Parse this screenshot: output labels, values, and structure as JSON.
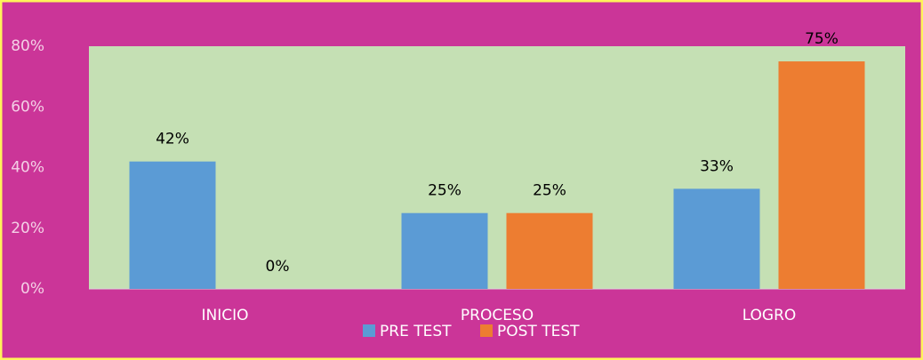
{
  "chart_data": {
    "type": "bar",
    "categories": [
      "INICIO",
      "PROCESO",
      "LOGRO"
    ],
    "series": [
      {
        "name": "PRE TEST",
        "color": "#5b9bd5",
        "values": [
          42,
          25,
          33
        ],
        "value_labels": [
          "42%",
          "25%",
          "33%"
        ]
      },
      {
        "name": "POST TEST",
        "color": "#ed7d31",
        "values": [
          0,
          25,
          75
        ],
        "value_labels": [
          "0%",
          "25%",
          "75%"
        ]
      }
    ],
    "ylim": [
      0,
      80
    ],
    "yticks": [
      {
        "value": 0,
        "label": "0%"
      },
      {
        "value": 20,
        "label": "20%"
      },
      {
        "value": 40,
        "label": "40%"
      },
      {
        "value": 60,
        "label": "60%"
      },
      {
        "value": 80,
        "label": "80%"
      }
    ],
    "legend": "bottom"
  }
}
